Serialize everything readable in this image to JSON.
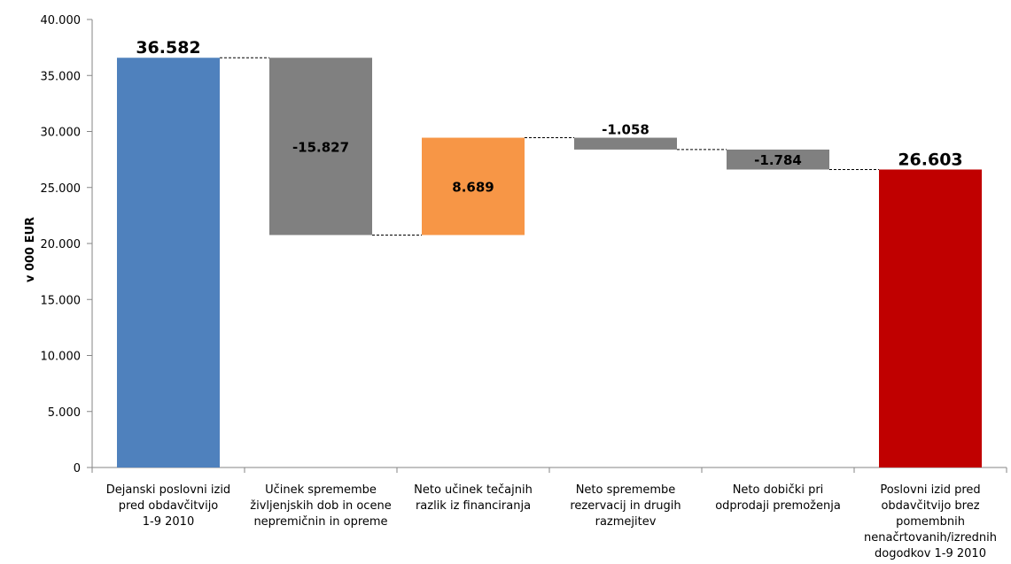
{
  "chart_data": {
    "type": "bar",
    "subtype": "waterfall",
    "ylabel": "v 000 EUR",
    "ylim": [
      0,
      40000
    ],
    "y_ticks": [
      "0",
      "5.000",
      "10.000",
      "15.000",
      "20.000",
      "25.000",
      "30.000",
      "35.000",
      "40.000"
    ],
    "grid": false,
    "legend": "none",
    "bars": [
      {
        "category": "Dejanski poslovni izid pred obdavčitvijo 1-9 2010",
        "category_lines": [
          "Dejanski poslovni izid",
          "pred obdavčitvijo",
          "1-9 2010"
        ],
        "base": 0,
        "top": 36582,
        "value_label": "36.582",
        "label_position": "above",
        "color": "#4f81bd"
      },
      {
        "category": "Učinek spremembe življenjskih dob in ocene nepremičnin in opreme",
        "category_lines": [
          "Učinek spremembe",
          "življenjskih dob in ocene",
          "nepremičnin in opreme"
        ],
        "base": 20755,
        "top": 36582,
        "value_label": "-15.827",
        "label_position": "inside",
        "color": "#808080"
      },
      {
        "category": "Neto učinek tečajnih razlik iz financiranja",
        "category_lines": [
          "Neto učinek tečajnih",
          "razlik iz financiranja"
        ],
        "base": 20755,
        "top": 29444,
        "value_label": "8.689",
        "label_position": "inside",
        "color": "#f79646"
      },
      {
        "category": "Neto spremembe rezervacij in drugih razmejitev",
        "category_lines": [
          "Neto spremembe",
          "rezervacij in drugih",
          "razmejitev"
        ],
        "base": 28386,
        "top": 29444,
        "value_label": "-1.058",
        "label_position": "above",
        "color": "#808080"
      },
      {
        "category": "Neto dobički pri odprodaji premoženja",
        "category_lines": [
          "Neto dobički pri",
          "odprodaji premoženja"
        ],
        "base": 26603,
        "top": 28386,
        "value_label": "-1.784",
        "label_position": "inside",
        "color": "#808080"
      },
      {
        "category": "Poslovni izid pred obdavčitvijo brez pomembnih nenačrtovanih/izrednih dogodkov 1-9 2010",
        "category_lines": [
          "Poslovni izid pred",
          "obdavčitvijo brez",
          "pomembnih",
          "nenačrtovanih/izrednih",
          "dogodkov 1-9 2010"
        ],
        "base": 0,
        "top": 26603,
        "value_label": "26.603",
        "label_position": "above",
        "color": "#c00000"
      }
    ],
    "connectors": [
      {
        "from": 0,
        "to": 1,
        "level": 36582
      },
      {
        "from": 1,
        "to": 2,
        "level": 20755
      },
      {
        "from": 2,
        "to": 3,
        "level": 29444
      },
      {
        "from": 3,
        "to": 4,
        "level": 28386
      },
      {
        "from": 4,
        "to": 5,
        "level": 26603
      }
    ]
  }
}
